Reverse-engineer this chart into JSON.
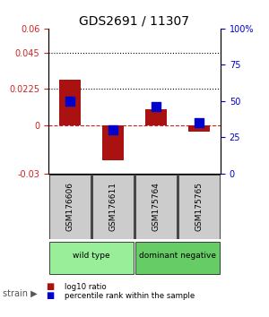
{
  "title": "GDS2691 / 11307",
  "samples": [
    "GSM176606",
    "GSM176611",
    "GSM175764",
    "GSM175765"
  ],
  "log10_ratio": [
    0.028,
    -0.022,
    0.01,
    -0.004
  ],
  "percentile_rank": [
    50,
    30,
    46,
    35
  ],
  "ylim_left": [
    -0.03,
    0.06
  ],
  "ylim_right": [
    0,
    100
  ],
  "yticks_left": [
    -0.03,
    0,
    0.0225,
    0.045,
    0.06
  ],
  "yticks_right": [
    0,
    25,
    50,
    75,
    100
  ],
  "ytick_labels_left": [
    "-0.03",
    "0",
    "0.0225",
    "0.045",
    "0.06"
  ],
  "ytick_labels_right": [
    "0",
    "25",
    "50",
    "75",
    "100%"
  ],
  "hlines_dotted": [
    0.045,
    0.0225
  ],
  "hline_dashed": 0,
  "bar_color": "#aa1111",
  "square_color": "#0000cc",
  "groups": [
    {
      "label": "wild type",
      "color": "#99ee99",
      "samples": [
        0,
        1
      ]
    },
    {
      "label": "dominant negative",
      "color": "#66cc66",
      "samples": [
        2,
        3
      ]
    }
  ],
  "legend_items": [
    {
      "color": "#aa1111",
      "label": "log10 ratio"
    },
    {
      "color": "#0000cc",
      "label": "percentile rank within the sample"
    }
  ],
  "strain_label": "strain",
  "bar_width": 0.5,
  "background_color": "#ffffff",
  "plot_bg_color": "#ffffff",
  "xlabel_color_left": "#cc2222",
  "xlabel_color_right": "#0000cc"
}
